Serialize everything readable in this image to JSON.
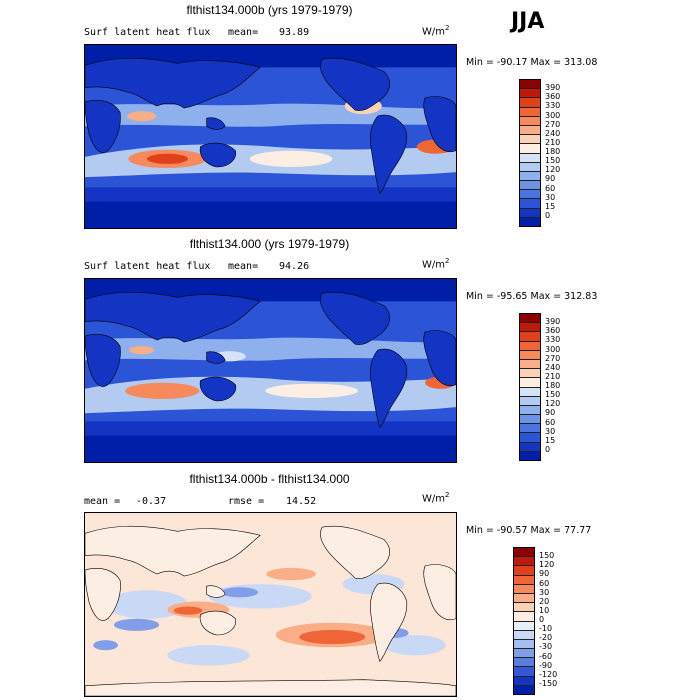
{
  "season": "JJA",
  "panels": [
    {
      "title": "flthist134.000b (yrs 1979-1979)",
      "variable": "Surf latent heat flux",
      "stat_label": "mean=",
      "stat_value": "93.89",
      "units": "W/m",
      "units_exp": "2",
      "minmax": "Min = -90.17 Max = 313.08",
      "colorbar_labels": [
        "390",
        "360",
        "330",
        "300",
        "270",
        "240",
        "210",
        "180",
        "150",
        "120",
        "90",
        "60",
        "30",
        "15",
        "0"
      ],
      "colors": [
        "#8b0000",
        "#c0180b",
        "#e0401a",
        "#ef6535",
        "#f68a5c",
        "#f9ae88",
        "#fbd2b6",
        "#fdeee4",
        "#d6e3f7",
        "#b3cbf0",
        "#8eb0ec",
        "#6c93e6",
        "#4a74e0",
        "#2c54d6",
        "#1435c4",
        "#001fa8"
      ],
      "base_color": "#2c54d6"
    },
    {
      "title": "flthist134.000 (yrs 1979-1979)",
      "variable": "Surf latent heat flux",
      "stat_label": "mean=",
      "stat_value": "94.26",
      "units": "W/m",
      "units_exp": "2",
      "minmax": "Min = -95.65 Max = 312.83",
      "colorbar_labels": [
        "390",
        "360",
        "330",
        "300",
        "270",
        "240",
        "210",
        "180",
        "150",
        "120",
        "90",
        "60",
        "30",
        "15",
        "0"
      ],
      "colors": [
        "#8b0000",
        "#c0180b",
        "#e0401a",
        "#ef6535",
        "#f68a5c",
        "#f9ae88",
        "#fbd2b6",
        "#fdeee4",
        "#d6e3f7",
        "#b3cbf0",
        "#8eb0ec",
        "#6c93e6",
        "#4a74e0",
        "#2c54d6",
        "#1435c4",
        "#001fa8"
      ],
      "base_color": "#2c54d6"
    },
    {
      "title": "flthist134.000b - flthist134.000",
      "stat_label": "mean =",
      "stat_value": "-0.37",
      "rmse_label": "rmse =",
      "rmse_value": "14.52",
      "units": "W/m",
      "units_exp": "2",
      "minmax": "Min = -90.57 Max = 77.77",
      "colorbar_labels": [
        "150",
        "120",
        "90",
        "60",
        "30",
        "20",
        "10",
        "0",
        "-10",
        "-20",
        "-30",
        "-60",
        "-90",
        "-120",
        "-150"
      ],
      "colors": [
        "#8b0000",
        "#c0180b",
        "#e0401a",
        "#ef6535",
        "#f68a5c",
        "#f9ae88",
        "#fbd2b6",
        "#fdeee4",
        "#e9eff9",
        "#c9d8f4",
        "#a7bfef",
        "#819fe8",
        "#5a7ee0",
        "#3458d4",
        "#1435c4",
        "#001fa8"
      ],
      "base_color": "#fbe6d8"
    }
  ]
}
